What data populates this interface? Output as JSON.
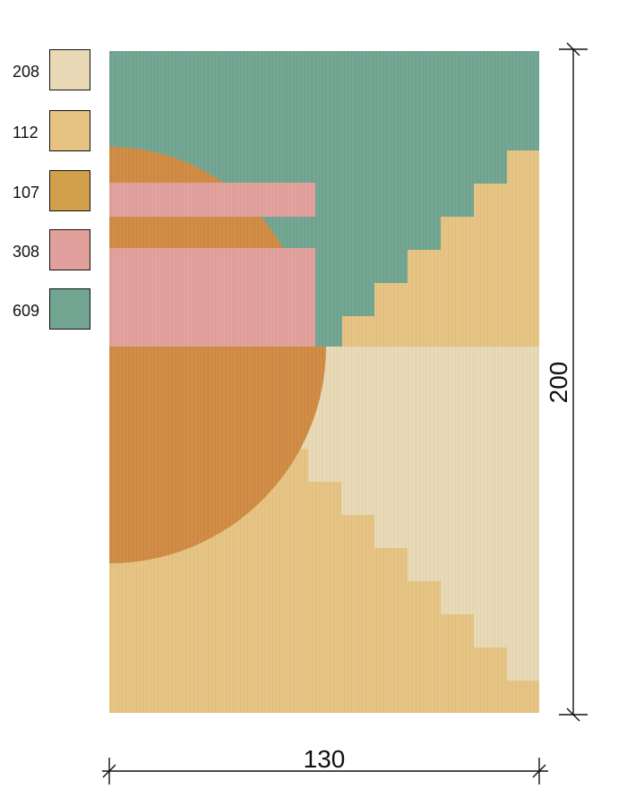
{
  "legend": {
    "items": [
      {
        "code": "208",
        "color": "#E8D8B5"
      },
      {
        "code": "112",
        "color": "#E6C382"
      },
      {
        "code": "107",
        "color": "#D2A04B"
      },
      {
        "code": "308",
        "color": "#E2A09C"
      },
      {
        "code": "609",
        "color": "#71A591"
      }
    ]
  },
  "dimensions": {
    "width_label": "130",
    "height_label": "200"
  },
  "colors": {
    "teal": "#71A591",
    "sand": "#E6C382",
    "cream": "#E8D8B5",
    "pink": "#E2A09C",
    "rust": "#D08B43"
  }
}
